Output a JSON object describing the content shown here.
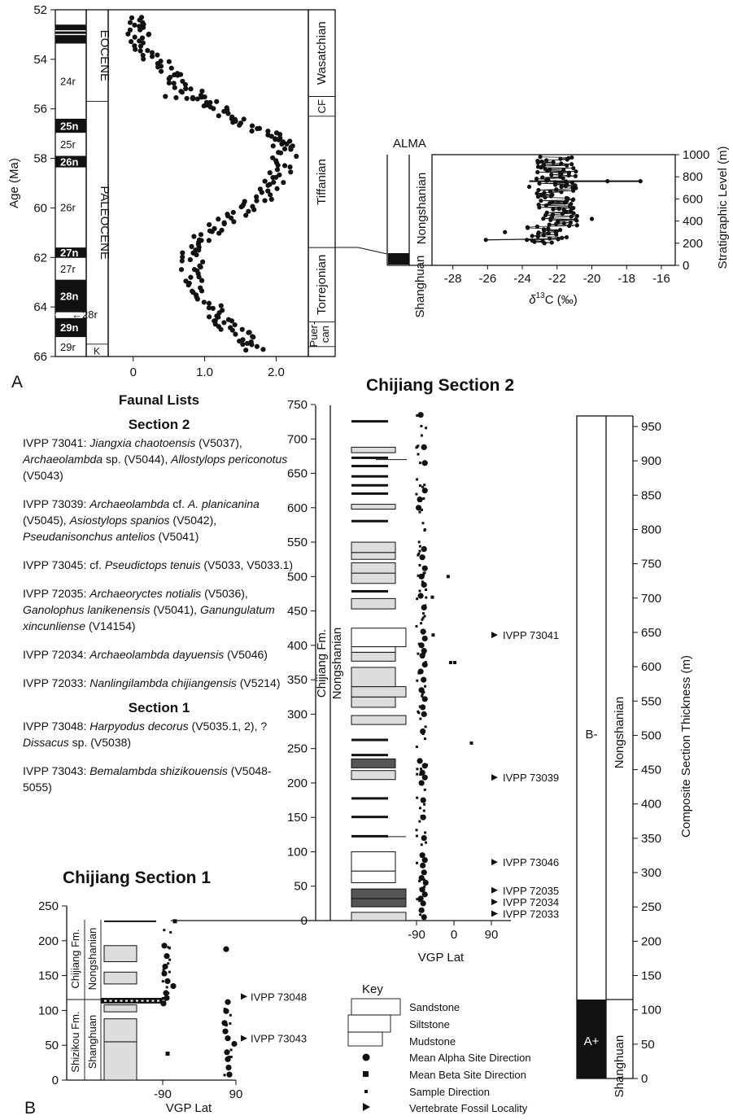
{
  "panel_labels": {
    "a": "A",
    "b": "B"
  },
  "panel_a": {
    "y_axis_label": "Age (Ma)",
    "y_ticks": [
      "52",
      "54",
      "56",
      "58",
      "60",
      "62",
      "64",
      "66"
    ],
    "x_ticks": [
      "0",
      "1.0",
      "2.0"
    ],
    "chrons": [
      {
        "label": "24r",
        "top": 53.35,
        "bottom": 56.4,
        "polarity": "r"
      },
      {
        "label": "25n",
        "top": 56.4,
        "bottom": 56.95,
        "polarity": "n"
      },
      {
        "label": "25r",
        "top": 56.95,
        "bottom": 57.9,
        "polarity": "r"
      },
      {
        "label": "26n",
        "top": 57.9,
        "bottom": 58.35,
        "polarity": "n"
      },
      {
        "label": "26r",
        "top": 58.35,
        "bottom": 61.6,
        "polarity": "r"
      },
      {
        "label": "27n",
        "top": 61.6,
        "bottom": 62.0,
        "polarity": "n"
      },
      {
        "label": "27r",
        "top": 62.0,
        "bottom": 62.9,
        "polarity": "r"
      },
      {
        "label": "28n",
        "top": 62.9,
        "bottom": 64.2,
        "polarity": "n"
      },
      {
        "label": "28r",
        "top": 64.2,
        "bottom": 64.45,
        "polarity": "r"
      },
      {
        "label": "29n",
        "top": 64.45,
        "bottom": 65.2,
        "polarity": "n"
      },
      {
        "label": "29r",
        "top": 65.2,
        "bottom": 66.0,
        "polarity": "r"
      }
    ],
    "epochs": [
      {
        "label": "EOCENE",
        "top": 52.0,
        "bottom": 55.7
      },
      {
        "label": "PALEOCENE",
        "top": 55.7,
        "bottom": 65.5
      },
      {
        "label": "K",
        "top": 65.5,
        "bottom": 66.0
      }
    ],
    "nalma": [
      {
        "label": "Wasatchian",
        "top": 52.0,
        "bottom": 55.5
      },
      {
        "label": "CF",
        "top": 55.5,
        "bottom": 56.3
      },
      {
        "label": "Tiffanian",
        "top": 56.3,
        "bottom": 61.6
      },
      {
        "label": "Torrejonian",
        "top": 61.6,
        "bottom": 64.6
      },
      {
        "label": "Puer-",
        "top": 64.6,
        "bottom": 65.6
      },
      {
        "label": "can",
        "top": 64.6,
        "bottom": 65.6
      }
    ],
    "chart_data": {
      "type": "scatter",
      "ylabel": "Age (Ma)",
      "xlabel": "",
      "ylim": [
        52,
        66
      ],
      "y_reversed": true,
      "xlim": [
        -0.35,
        2.45
      ],
      "curve_knots": [
        [
          0.12,
          52.3
        ],
        [
          0.05,
          53.1
        ],
        [
          0.3,
          54.0
        ],
        [
          0.6,
          54.8
        ],
        [
          0.95,
          55.6
        ],
        [
          1.4,
          56.3
        ],
        [
          1.9,
          57.0
        ],
        [
          2.15,
          57.6
        ],
        [
          2.05,
          58.7
        ],
        [
          1.8,
          59.6
        ],
        [
          1.35,
          60.4
        ],
        [
          0.95,
          61.3
        ],
        [
          0.8,
          62.2
        ],
        [
          0.95,
          63.3
        ],
        [
          1.2,
          64.4
        ],
        [
          1.45,
          65.0
        ],
        [
          1.8,
          65.8
        ]
      ],
      "excursion_points": [
        [
          0.45,
          55.5
        ],
        [
          0.6,
          55.55
        ],
        [
          0.75,
          55.58
        ],
        [
          0.9,
          55.6
        ],
        [
          1.0,
          55.52
        ]
      ]
    }
  },
  "alma": {
    "title": "ALMA",
    "col_upper": "Nongshanian",
    "col_lower": "Shanghuan",
    "y_axis_label": "Stratigraphic Level (m)",
    "y_ticks": [
      "0",
      "200",
      "400",
      "600",
      "800",
      "1000"
    ],
    "x_ticks": [
      "-28",
      "-26",
      "-24",
      "-22",
      "-20",
      "-18",
      "-16"
    ],
    "x_axis_label_prefix": "δ",
    "x_axis_label_sup": "13",
    "x_axis_label_suffix": "C (‰)",
    "chart_data": {
      "type": "scatter",
      "xlim": [
        -29.2,
        -15.2
      ],
      "ylim": [
        0,
        1000
      ],
      "range": {
        "y_start": 200,
        "y_end": 980
      },
      "outliers": [
        [
          -26.1,
          230
        ],
        [
          -23.6,
          710
        ],
        [
          -17.2,
          760
        ],
        [
          -19.1,
          760
        ],
        [
          -20.0,
          420
        ],
        [
          -25.0,
          300
        ]
      ]
    }
  },
  "fauna": {
    "title": "Faunal Lists",
    "section2_title": "Section 2",
    "section1_title": "Section 1",
    "section2": [
      {
        "id": "IVPP 73041:",
        "parts": [
          [
            "i",
            "Jiangxia chaotoensis"
          ],
          [
            "n",
            " (V5037), "
          ],
          [
            "i",
            "Archaeolambda"
          ],
          [
            "n",
            " sp. (V5044), "
          ],
          [
            "i",
            "Allostylops periconotus"
          ],
          [
            "n",
            " (V5043)"
          ]
        ]
      },
      {
        "id": "IVPP 73039:",
        "parts": [
          [
            "i",
            "Archaeolambda"
          ],
          [
            "n",
            " cf. "
          ],
          [
            "i",
            "A. planicanina"
          ],
          [
            "n",
            " (V5045), "
          ],
          [
            "i",
            "Asiostylops spanios"
          ],
          [
            "n",
            " (V5042), "
          ],
          [
            "i",
            "Pseudanisonchus antelios"
          ],
          [
            "n",
            " (V5041)"
          ]
        ]
      },
      {
        "id": "IVPP 73045:",
        "parts": [
          [
            "n",
            "cf. "
          ],
          [
            "i",
            "Pseudictops tenuis"
          ],
          [
            "n",
            " (V5033, V5033.1)"
          ]
        ]
      },
      {
        "id": "IVPP 72035:",
        "parts": [
          [
            "i",
            "Archaeoryctes notialis"
          ],
          [
            "n",
            " (V5036), "
          ],
          [
            "i",
            "Ganolophus lanikenensis"
          ],
          [
            "n",
            " (V5041), "
          ],
          [
            "i",
            "Ganungulatum xincunliense"
          ],
          [
            "n",
            " (V14154)"
          ]
        ]
      },
      {
        "id": "IVPP 72034:",
        "parts": [
          [
            "i",
            "Archaeolambda dayuensis"
          ],
          [
            "n",
            " (V5046)"
          ]
        ]
      },
      {
        "id": "IVPP 72033:",
        "parts": [
          [
            "i",
            "Nanlingilambda chijiangensis"
          ],
          [
            "n",
            " (V5214)"
          ]
        ]
      }
    ],
    "section1": [
      {
        "id": "IVPP 73048:",
        "parts": [
          [
            "i",
            "Harpyodus decorus"
          ],
          [
            "n",
            " (V5035.1, 2), ?"
          ],
          [
            "i",
            "Dissacus"
          ],
          [
            "n",
            " sp. (V5038)"
          ]
        ]
      },
      {
        "id": "IVPP 73043:",
        "parts": [
          [
            "i",
            "Bemalambda shizikouensis"
          ],
          [
            "n",
            " (V5048-5055)"
          ]
        ]
      }
    ]
  },
  "section2": {
    "title": "Chijiang Section 2",
    "y_ticks": [
      "0",
      "50",
      "100",
      "150",
      "200",
      "250",
      "300",
      "350",
      "400",
      "450",
      "500",
      "550",
      "600",
      "650",
      "700",
      "750"
    ],
    "formation": "Chijiang Fm.",
    "stage": "Nongshanian",
    "x_ticks": [
      "-90",
      "0",
      "90"
    ],
    "x_axis_label": "VGP Lat",
    "localities": [
      {
        "label": "IVPP 73041",
        "level": 415
      },
      {
        "label": "IVPP 73039",
        "level": 208
      },
      {
        "label": "IVPP 73046",
        "level": 85
      },
      {
        "label": "IVPP 72035",
        "level": 44
      },
      {
        "label": "IVPP 72034",
        "level": 27
      },
      {
        "label": "IVPP 72033",
        "level": 10
      }
    ],
    "chart_data": {
      "type": "scatter",
      "xlim": [
        -110,
        90
      ],
      "ylim": [
        0,
        760
      ],
      "sites": [
        [
          -72,
          5
        ],
        [
          -78,
          15
        ],
        [
          -74,
          25
        ],
        [
          -80,
          32
        ],
        [
          -70,
          38
        ],
        [
          -76,
          45
        ],
        [
          -68,
          55
        ],
        [
          -78,
          62
        ],
        [
          -72,
          70
        ],
        [
          -75,
          80
        ],
        [
          -70,
          88
        ],
        [
          -76,
          95
        ],
        [
          -72,
          120
        ],
        [
          -74,
          150
        ],
        [
          -74,
          175
        ],
        [
          -78,
          200
        ],
        [
          -70,
          208
        ],
        [
          -76,
          215
        ],
        [
          -70,
          225
        ],
        [
          -82,
          232
        ],
        [
          -75,
          275
        ],
        [
          -72,
          300
        ],
        [
          -75,
          310
        ],
        [
          -70,
          322
        ],
        [
          -78,
          335
        ],
        [
          -73,
          350
        ],
        [
          -80,
          362
        ],
        [
          -70,
          372
        ],
        [
          -76,
          385
        ],
        [
          -72,
          392
        ],
        [
          -78,
          400
        ],
        [
          -70,
          410
        ],
        [
          -74,
          420
        ],
        [
          -72,
          455
        ],
        [
          -80,
          472
        ],
        [
          -72,
          488
        ],
        [
          -78,
          500
        ],
        [
          -70,
          512
        ],
        [
          -76,
          528
        ],
        [
          -72,
          540
        ],
        [
          -85,
          600
        ],
        [
          -82,
          612
        ],
        [
          -70,
          625
        ],
        [
          -70,
          665
        ],
        [
          -72,
          688
        ],
        [
          -80,
          735
        ]
      ],
      "outliers": [
        [
          -8,
          375
        ],
        [
          2,
          375
        ],
        [
          -14,
          500
        ],
        [
          42,
          258
        ],
        [
          -50,
          415
        ],
        [
          -52,
          470
        ]
      ]
    }
  },
  "section1": {
    "title": "Chijiang Section 1",
    "y_ticks": [
      "0",
      "50",
      "100",
      "150",
      "200",
      "250"
    ],
    "col_fm_upper": "Chijiang Fm.",
    "col_fm_lower": "Shizikou Fm.",
    "col_stage_upper": "Nongshanian",
    "col_stage_lower": "Shanghuan",
    "x_ticks": [
      "-90",
      "90"
    ],
    "x_axis_label": "VGP Lat",
    "localities": [
      {
        "label": "IVPP 73048",
        "level": 120
      },
      {
        "label": "IVPP 73043",
        "level": 60
      }
    ],
    "chart_data": {
      "type": "scatter",
      "xlim": [
        -140,
        160
      ],
      "ylim": [
        0,
        250
      ],
      "sites": [
        [
          -86,
          193
        ],
        [
          -80,
          178
        ],
        [
          -84,
          163
        ],
        [
          -86,
          153
        ],
        [
          -78,
          142
        ],
        [
          -64,
          135
        ],
        [
          -82,
          125
        ],
        [
          -80,
          118
        ],
        [
          -88,
          110
        ],
        [
          66,
          188
        ],
        [
          70,
          112
        ],
        [
          66,
          99
        ],
        [
          62,
          82
        ],
        [
          64,
          70
        ],
        [
          70,
          60
        ],
        [
          86,
          52
        ],
        [
          68,
          40
        ],
        [
          70,
          30
        ],
        [
          72,
          18
        ],
        [
          74,
          8
        ]
      ],
      "outliers": [
        [
          -78,
          38
        ],
        [
          -60,
          228
        ]
      ]
    }
  },
  "composite": {
    "y_axis_label": "Composite Section Thickness (m)",
    "y_ticks": [
      "0",
      "50",
      "100",
      "150",
      "200",
      "250",
      "300",
      "350",
      "400",
      "450",
      "500",
      "550",
      "600",
      "650",
      "700",
      "750",
      "800",
      "850",
      "900",
      "950"
    ],
    "zone_upper": "B-",
    "zone_lower": "A+",
    "stage_upper": "Nongshanian",
    "stage_lower": "Shanghuan"
  },
  "key": {
    "title": "Key",
    "lithology": [
      "Sandstone",
      "Siltstone",
      "Mudstone"
    ],
    "symbols": [
      "Mean Alpha Site Direction",
      "Mean Beta Site Direction",
      "Sample Direction",
      "Vertebrate Fossil Locality"
    ]
  }
}
